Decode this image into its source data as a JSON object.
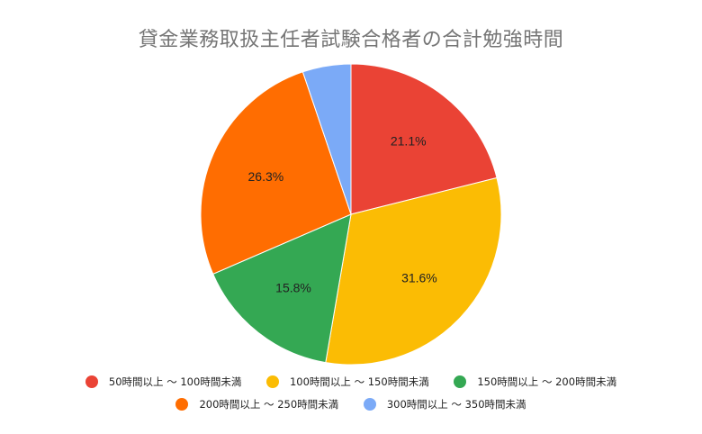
{
  "chart_data": {
    "type": "pie",
    "title": "貸金業務取扱主任者試験合格者の合計勉強時間",
    "categories": [
      "50時間以上 ～ 100時間未満",
      "100時間以上 ～ 150時間未満",
      "150時間以上 ～ 200時間未満",
      "200時間以上 ～ 250時間未満",
      "300時間以上 ～ 350時間未満"
    ],
    "values": [
      21.1,
      31.6,
      15.8,
      26.3,
      5.2
    ],
    "labels": [
      "21.1%",
      "31.6%",
      "15.8%",
      "26.3%",
      ""
    ],
    "colors": [
      "#ea4335",
      "#fbbc04",
      "#34a853",
      "#ff6d01",
      "#7baaf7"
    ],
    "legend_position": "bottom"
  },
  "legend": {
    "items": [
      {
        "label": "50時間以上 ～ 100時間未満",
        "color": "#ea4335"
      },
      {
        "label": "100時間以上 ～ 150時間未満",
        "color": "#fbbc04"
      },
      {
        "label": "150時間以上 ～ 200時間未満",
        "color": "#34a853"
      },
      {
        "label": "200時間以上 ～ 250時間未満",
        "color": "#ff6d01"
      },
      {
        "label": "300時間以上 ～ 350時間未満",
        "color": "#7baaf7"
      }
    ]
  }
}
